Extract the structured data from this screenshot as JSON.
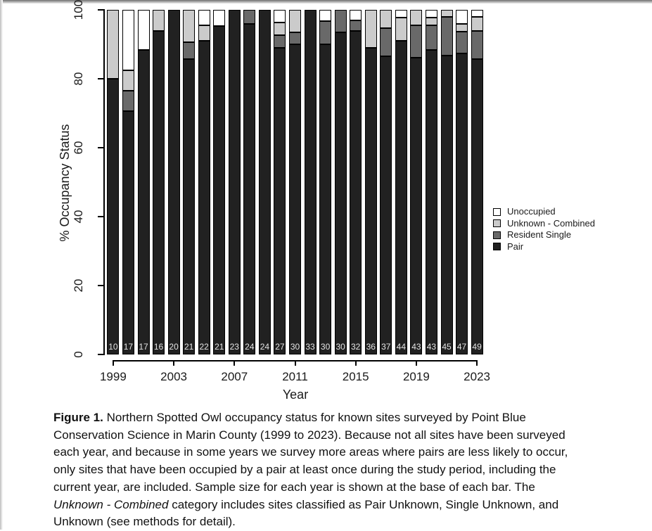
{
  "chart_data": {
    "type": "bar",
    "stacked": true,
    "title": "",
    "xlabel": "Year",
    "ylabel": "% Occupancy Status",
    "ylim": [
      0,
      100
    ],
    "y_ticks": [
      "0",
      "20",
      "40",
      "60",
      "80",
      "100"
    ],
    "x_tick_labels": [
      "1999",
      "2003",
      "2007",
      "2011",
      "2015",
      "2019",
      "2023"
    ],
    "categories": [
      1999,
      2000,
      2001,
      2002,
      2003,
      2004,
      2005,
      2006,
      2007,
      2008,
      2009,
      2010,
      2011,
      2012,
      2013,
      2014,
      2015,
      2016,
      2017,
      2018,
      2019,
      2020,
      2021,
      2022,
      2023
    ],
    "sample_sizes": [
      10,
      17,
      17,
      16,
      20,
      21,
      22,
      21,
      23,
      24,
      24,
      27,
      30,
      33,
      30,
      30,
      32,
      36,
      37,
      44,
      43,
      43,
      45,
      47,
      49
    ],
    "sample_size_note": "Sample size shown in white at base of each bar",
    "stack_order_bottom_to_top": [
      "Pair",
      "Resident Single",
      "Unknown - Combined",
      "Unoccupied"
    ],
    "values_are": "counts of sites; bar segment height = count / sample_size * 100%",
    "series": [
      {
        "name": "Pair",
        "color": "#212121",
        "counts": [
          8,
          12,
          15,
          15,
          20,
          18,
          20,
          20,
          23,
          23,
          24,
          24,
          27,
          33,
          27,
          28,
          30,
          32,
          32,
          40,
          37,
          38,
          39,
          41,
          42
        ],
        "percent": [
          80.0,
          70.6,
          88.2,
          93.8,
          100.0,
          85.7,
          90.9,
          95.2,
          100.0,
          95.8,
          100.0,
          88.9,
          90.0,
          100.0,
          90.0,
          93.3,
          93.8,
          88.9,
          86.5,
          90.9,
          86.0,
          88.4,
          86.7,
          87.2,
          85.7
        ]
      },
      {
        "name": "Resident Single",
        "color": "#696969",
        "counts": [
          0,
          1,
          0,
          0,
          0,
          1,
          0,
          0,
          0,
          1,
          0,
          1,
          1,
          0,
          2,
          2,
          1,
          0,
          3,
          0,
          4,
          3,
          5,
          3,
          4
        ],
        "percent": [
          0,
          5.9,
          0,
          0,
          0,
          4.8,
          0,
          0,
          0,
          4.2,
          0,
          3.7,
          3.3,
          0,
          6.7,
          6.7,
          3.1,
          0,
          8.1,
          0,
          9.3,
          7.0,
          11.1,
          6.4,
          8.2
        ]
      },
      {
        "name": "Unknown - Combined",
        "color": "#cbcbcb",
        "counts": [
          2,
          1,
          0,
          1,
          0,
          2,
          1,
          0,
          0,
          0,
          0,
          1,
          2,
          0,
          0,
          0,
          0,
          4,
          2,
          3,
          2,
          1,
          1,
          1,
          2
        ],
        "percent": [
          20.0,
          5.9,
          0,
          6.3,
          0,
          9.5,
          4.5,
          0,
          0,
          0,
          0,
          3.7,
          6.7,
          0,
          0,
          0,
          0,
          11.1,
          5.4,
          6.8,
          4.7,
          2.3,
          2.2,
          2.1,
          4.1
        ]
      },
      {
        "name": "Unoccupied",
        "color": "#ffffff",
        "counts": [
          0,
          3,
          2,
          0,
          0,
          0,
          1,
          1,
          0,
          0,
          0,
          1,
          0,
          0,
          1,
          0,
          1,
          0,
          0,
          1,
          0,
          1,
          0,
          2,
          1
        ],
        "percent": [
          0,
          17.6,
          11.8,
          0,
          0,
          0,
          4.5,
          4.8,
          0,
          0,
          0,
          3.7,
          0,
          0,
          3.3,
          0,
          3.1,
          0,
          0,
          2.3,
          0,
          2.3,
          0,
          4.3,
          2.0
        ]
      }
    ],
    "legend": {
      "position": "right",
      "entries": [
        {
          "label": "Unoccupied",
          "color": "#ffffff"
        },
        {
          "label": "Unknown - Combined",
          "color": "#cbcbcb"
        },
        {
          "label": "Resident Single",
          "color": "#696969"
        },
        {
          "label": "Pair",
          "color": "#212121"
        }
      ]
    }
  },
  "caption": {
    "lines": [
      {
        "parts": [
          {
            "style": "bold",
            "text": "Figure 1."
          },
          {
            "style": "normal",
            "text": " Northern Spotted Owl occupancy status for known sites surveyed by Point Blue"
          }
        ]
      },
      {
        "parts": [
          {
            "style": "normal",
            "text": "Conservation Science in Marin County (1999 to 2023). Because not all sites have been surveyed"
          }
        ]
      },
      {
        "parts": [
          {
            "style": "normal",
            "text": "each year, and because in some years we survey more areas where pairs are less likely to occur,"
          }
        ]
      },
      {
        "parts": [
          {
            "style": "normal",
            "text": "only sites that have been occupied by a pair at least once during the study period, including the"
          }
        ]
      },
      {
        "parts": [
          {
            "style": "normal",
            "text": "current year, are included. Sample size for each year is shown at the base of each bar. The"
          }
        ]
      },
      {
        "parts": [
          {
            "style": "italic",
            "text": "Unknown - Combined"
          },
          {
            "style": "normal",
            "text": " category includes sites classified as Pair Unknown, Single Unknown, and"
          }
        ]
      },
      {
        "parts": [
          {
            "style": "normal",
            "text": "Unknown (see methods for detail)."
          }
        ]
      }
    ]
  }
}
